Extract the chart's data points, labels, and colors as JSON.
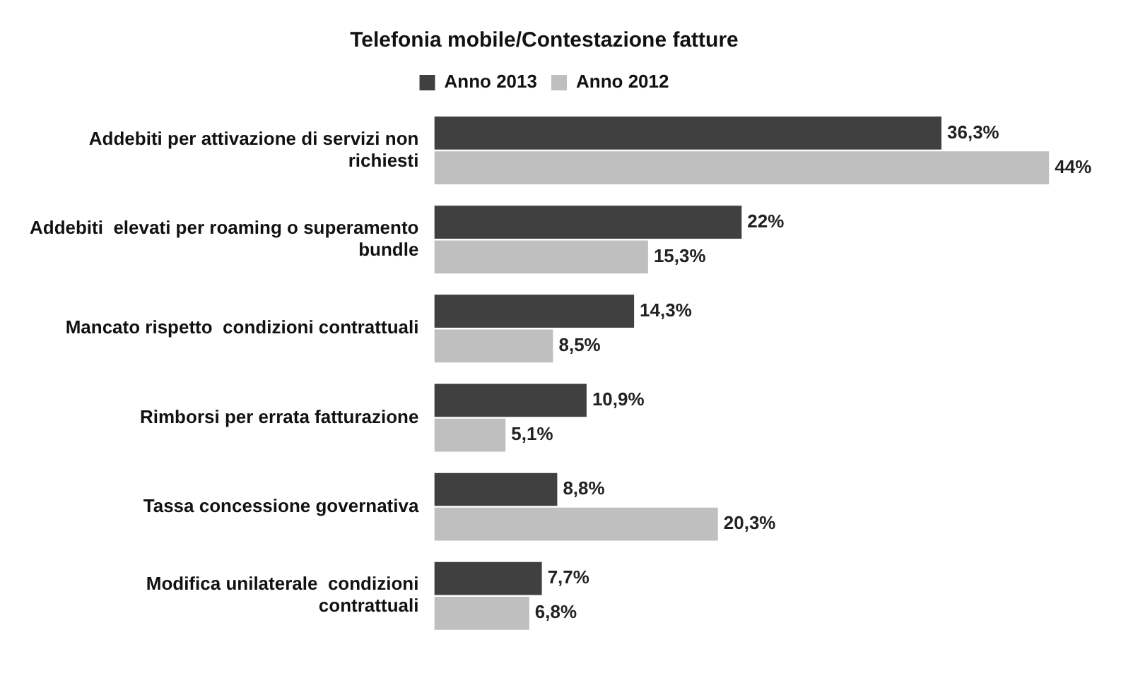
{
  "chart_data": {
    "type": "bar",
    "orientation": "horizontal",
    "title": "Telefonia mobile/Contestazione fatture",
    "legend": "top",
    "categories": [
      "Addebiti per attivazione di servizi non richiesti",
      "Addebiti  elevati per roaming o superamento bundle",
      "Mancato rispetto  condizioni contrattuali",
      "Rimborsi per errata fatturazione",
      "Tassa concessione governativa",
      "Modifica unilaterale  condizioni contrattuali"
    ],
    "series": [
      {
        "name": "Anno 2013",
        "color": "#404040",
        "values": [
          36.3,
          22,
          14.3,
          10.9,
          8.8,
          7.7
        ],
        "value_labels": [
          "36,3%",
          "22%",
          "14,3%",
          "10,9%",
          "8,8%",
          "7,7%"
        ]
      },
      {
        "name": "Anno 2012",
        "color": "#bfbfbf",
        "values": [
          44,
          15.3,
          8.5,
          5.1,
          20.3,
          6.8
        ],
        "value_labels": [
          "44%",
          "15,3%",
          "8,5%",
          "5,1%",
          "20,3%",
          "6,8%"
        ]
      }
    ],
    "grid": false
  }
}
